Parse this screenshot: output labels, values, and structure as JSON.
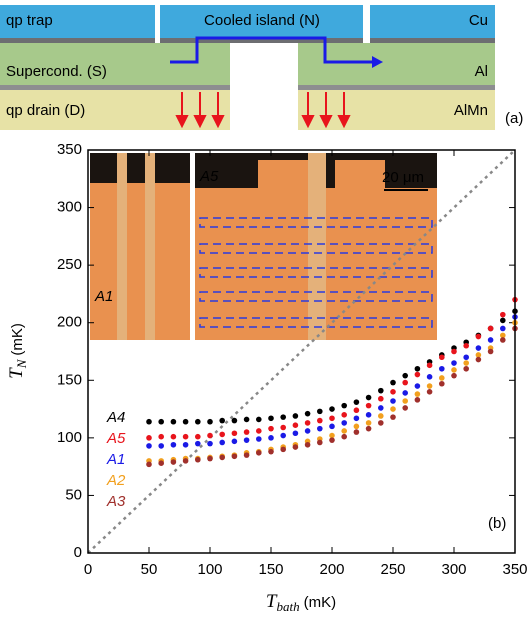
{
  "schematic": {
    "qp_trap": "qp trap",
    "island": "Cooled island (N)",
    "cu": "Cu",
    "supercond": "Supercond. (S)",
    "al": "Al",
    "qp_drain": "qp drain (D)",
    "almn": "AlMn",
    "panel": "(a)"
  },
  "insets": {
    "left": "A1",
    "right": "A5",
    "scale": "20 μm"
  },
  "chart_data": {
    "type": "scatter",
    "panel": "(b)",
    "x_label": {
      "symbol": "T",
      "subscript": "bath",
      "unit": "(mK)"
    },
    "y_label": {
      "symbol": "T",
      "subscript": "N",
      "unit": "(mK)"
    },
    "xlim": [
      0,
      350
    ],
    "ylim": [
      0,
      350
    ],
    "xticks": [
      0,
      50,
      100,
      150,
      200,
      250,
      300,
      350
    ],
    "yticks": [
      0,
      50,
      100,
      150,
      200,
      250,
      300,
      350
    ],
    "x": [
      50,
      60,
      70,
      80,
      90,
      100,
      110,
      120,
      130,
      140,
      150,
      160,
      170,
      180,
      190,
      200,
      210,
      220,
      230,
      240,
      250,
      260,
      270,
      280,
      290,
      300,
      310,
      320,
      330,
      340,
      350
    ],
    "series": [
      {
        "name": "A4",
        "color": "#000000",
        "values": [
          114,
          114,
          114,
          114,
          114,
          114,
          115,
          115,
          116,
          116,
          117,
          118,
          119,
          121,
          123,
          125,
          128,
          131,
          135,
          141,
          148,
          154,
          160,
          166,
          172,
          178,
          183,
          189,
          195,
          202,
          210
        ]
      },
      {
        "name": "A5",
        "color": "#e8141c",
        "values": [
          100,
          101,
          101,
          101,
          101,
          102,
          103,
          104,
          105,
          106,
          108,
          109,
          111,
          113,
          115,
          117,
          120,
          124,
          128,
          134,
          140,
          148,
          155,
          163,
          170,
          175,
          180,
          188,
          195,
          207,
          220
        ]
      },
      {
        "name": "A1",
        "color": "#1a1ae6",
        "values": [
          93,
          93,
          94,
          94,
          95,
          95,
          96,
          97,
          98,
          99,
          100,
          102,
          104,
          106,
          108,
          110,
          113,
          117,
          120,
          126,
          132,
          139,
          145,
          153,
          160,
          165,
          170,
          178,
          185,
          195,
          205
        ]
      },
      {
        "name": "A2",
        "color": "#f2a01e",
        "values": [
          80,
          80,
          81,
          82,
          82,
          83,
          84,
          85,
          87,
          88,
          90,
          92,
          94,
          97,
          99,
          102,
          106,
          110,
          113,
          119,
          125,
          132,
          138,
          145,
          152,
          159,
          165,
          172,
          178,
          189,
          200
        ]
      },
      {
        "name": "A3",
        "color": "#a0302c",
        "values": [
          77,
          78,
          79,
          80,
          81,
          82,
          83,
          84,
          85,
          87,
          88,
          90,
          92,
          94,
          96,
          98,
          101,
          105,
          108,
          113,
          118,
          126,
          133,
          140,
          147,
          154,
          160,
          168,
          175,
          185,
          195
        ]
      }
    ]
  }
}
